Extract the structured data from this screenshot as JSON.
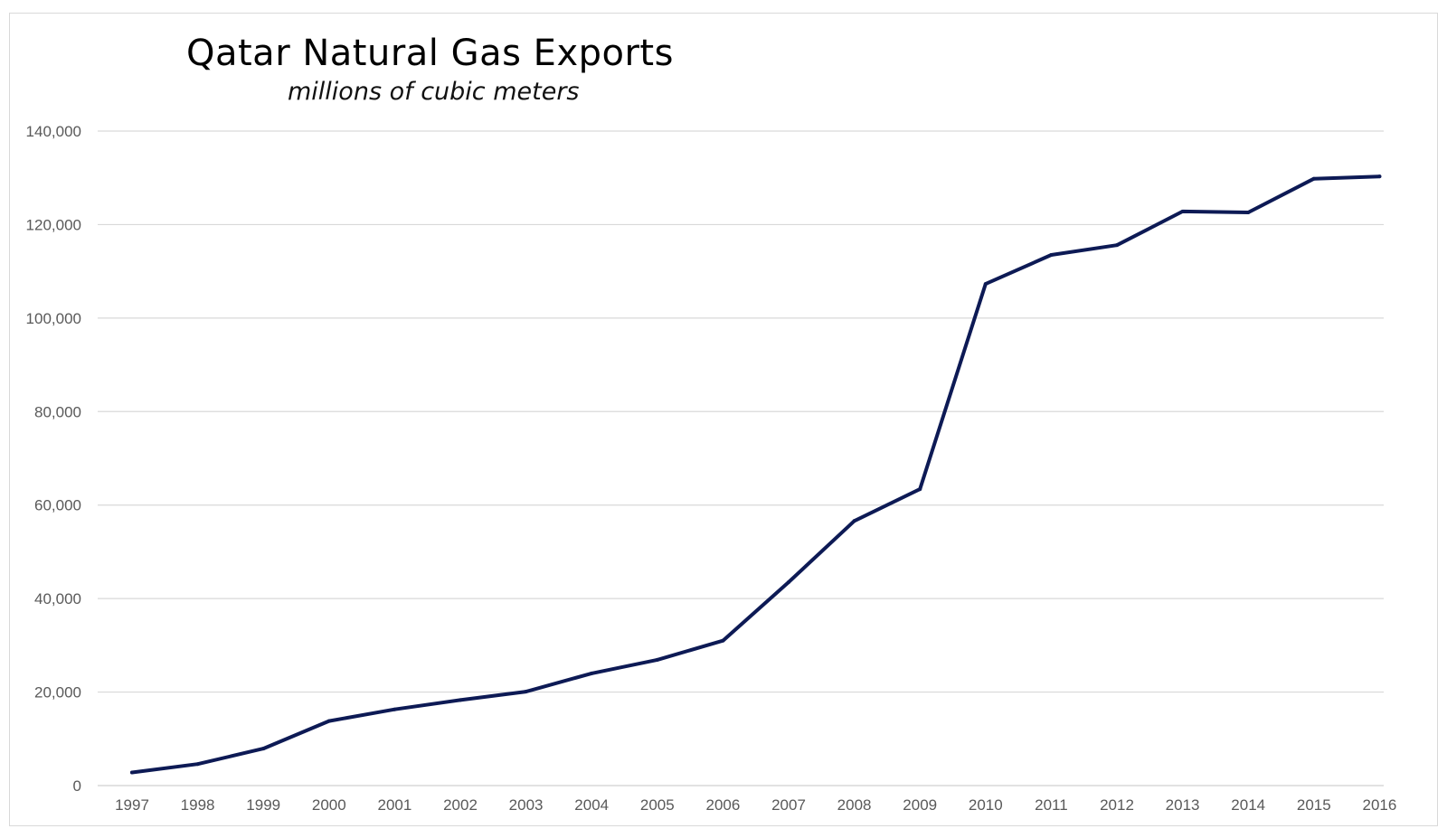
{
  "chart_data": {
    "type": "line",
    "title": "Qatar Natural Gas Exports",
    "subtitle": "millions of cubic meters",
    "xlabel": "",
    "ylabel": "",
    "ylim": [
      0,
      140000
    ],
    "yticks": [
      0,
      20000,
      40000,
      60000,
      80000,
      100000,
      120000,
      140000
    ],
    "ytick_labels": [
      "0",
      "20,000",
      "40,000",
      "60,000",
      "80,000",
      "100,000",
      "120,000",
      "140,000"
    ],
    "grid": true,
    "categories": [
      "1997",
      "1998",
      "1999",
      "2000",
      "2001",
      "2002",
      "2003",
      "2004",
      "2005",
      "2006",
      "2007",
      "2008",
      "2009",
      "2010",
      "2011",
      "2012",
      "2013",
      "2014",
      "2015",
      "2016"
    ],
    "series": [
      {
        "name": "Qatar Natural Gas Exports",
        "color": "#0d1a55",
        "values": [
          2800,
          4600,
          7900,
          13800,
          16300,
          18300,
          20100,
          24000,
          26900,
          31000,
          43500,
          56600,
          63400,
          107300,
          113500,
          115600,
          122800,
          122600,
          129800,
          130300
        ]
      }
    ],
    "gridline_color": "#d9d9d9",
    "tick_label_color": "#595959"
  }
}
